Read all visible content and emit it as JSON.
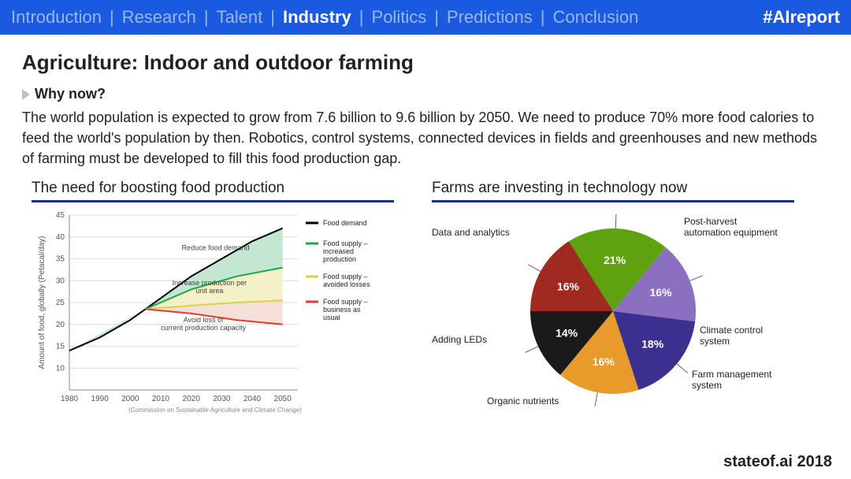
{
  "topbar": {
    "nav": [
      "Introduction",
      "Research",
      "Talent",
      "Industry",
      "Politics",
      "Predictions",
      "Conclusion"
    ],
    "active_index": 3,
    "hashtag": "#AIreport",
    "bg_color": "#1a5ae0"
  },
  "page": {
    "title": "Agriculture: Indoor and outdoor farming",
    "subhead": "Why now?",
    "body": "The world population is expected to grow from 7.6 billion to 9.6 billion by 2050. We need to produce 70% more food calories to feed the world's population by then. Robotics, control systems, connected devices in fields and greenhouses and new methods of farming must be developed to fill this food production gap.",
    "footer": "stateof.ai 2018"
  },
  "line_chart": {
    "title": "The need for boosting food production",
    "type": "line",
    "xlim": [
      1980,
      2055
    ],
    "ylim": [
      5,
      45
    ],
    "xticks": [
      1980,
      1990,
      2000,
      2010,
      2020,
      2030,
      2040,
      2050
    ],
    "yticks": [
      10,
      15,
      20,
      25,
      30,
      35,
      40,
      45
    ],
    "ylabel": "Amount of food, globally (Petacal/day)",
    "grid_color": "#dcdcdc",
    "series": {
      "demand": {
        "color": "#000000",
        "label": "Food demand",
        "points": [
          [
            1980,
            14
          ],
          [
            1990,
            17
          ],
          [
            2000,
            21
          ],
          [
            2005,
            23.5
          ],
          [
            2010,
            26
          ],
          [
            2020,
            31
          ],
          [
            2030,
            35
          ],
          [
            2040,
            39
          ],
          [
            2050,
            42
          ]
        ]
      },
      "increased": {
        "color": "#1fa648",
        "label": "Food supply – increased production",
        "points": [
          [
            2005,
            23.5
          ],
          [
            2020,
            28
          ],
          [
            2035,
            31
          ],
          [
            2050,
            33
          ]
        ]
      },
      "avoided": {
        "color": "#d8d24a",
        "label": "Food supply – avoided losses",
        "points": [
          [
            2005,
            23.5
          ],
          [
            2020,
            24.3
          ],
          [
            2035,
            25
          ],
          [
            2050,
            25.5
          ]
        ]
      },
      "bau": {
        "color": "#e23a2e",
        "label": "Food supply – business as usual",
        "points": [
          [
            2005,
            23.5
          ],
          [
            2020,
            22.5
          ],
          [
            2035,
            21
          ],
          [
            2050,
            20
          ]
        ]
      }
    },
    "area_fills": [
      {
        "between": [
          "demand",
          "increased"
        ],
        "color": "#b9e3c8"
      },
      {
        "between": [
          "increased",
          "avoided"
        ],
        "color": "#f2efc0"
      },
      {
        "between": [
          "avoided",
          "bau"
        ],
        "color": "#f6d9d2"
      }
    ],
    "annotations": [
      {
        "text": "Reduce food demand",
        "x": 2028,
        "y": 37
      },
      {
        "text": "Increase production per unit area",
        "x": 2026,
        "y": 29
      },
      {
        "text": "Avoid loss of current production capacity",
        "x": 2024,
        "y": 20.5
      }
    ],
    "source_note": "(Commission on Sustainable Agriculture and Climate Change)"
  },
  "pie_chart": {
    "title": "Farms are investing in technology now",
    "type": "pie",
    "slices": [
      {
        "label": "Data and analytics",
        "pct": 21,
        "color": "#5ea20f"
      },
      {
        "label": "Post-harvest automation equipment",
        "pct": 16,
        "color": "#8b6fc0"
      },
      {
        "label": "Climate control system",
        "pct": 18,
        "color": "#3b2f8f"
      },
      {
        "label": "Farm management system",
        "pct": 16,
        "color": "#e89a2a"
      },
      {
        "label": "Organic nutrients",
        "pct": 14,
        "color": "#1a1a1a"
      },
      {
        "label": "Adding LEDs",
        "pct": 16,
        "color": "#a02a22"
      }
    ],
    "label_fontsize": 12,
    "pct_fontsize": 14,
    "start_angle_deg": -126
  }
}
